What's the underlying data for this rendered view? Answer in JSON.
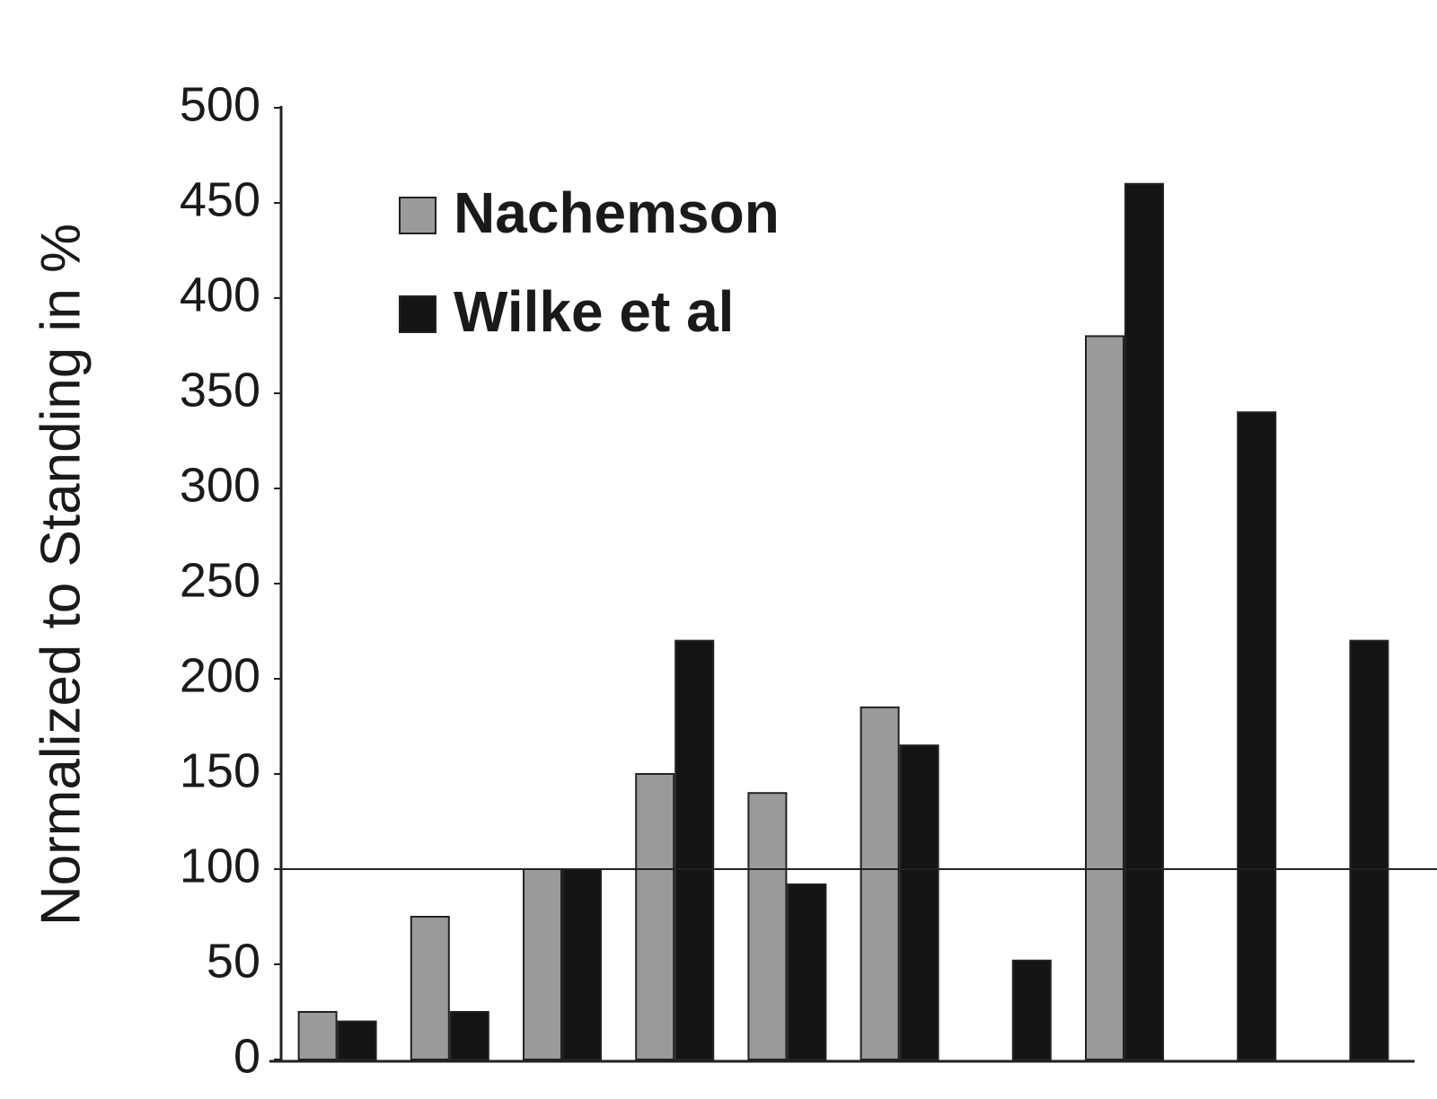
{
  "chart_data": {
    "type": "bar",
    "y_label": "Normalized to Standing in %",
    "categories": [
      null,
      null,
      null,
      null,
      null,
      null,
      null,
      null,
      null,
      null
    ],
    "series": [
      {
        "name": "Nachemson",
        "color": "#9a9a9a",
        "values": [
          25,
          75,
          100,
          150,
          140,
          185,
          null,
          380,
          null,
          null
        ]
      },
      {
        "name": "Wilke et al",
        "color": "#141414",
        "values": [
          20,
          25,
          100,
          220,
          92,
          165,
          52,
          460,
          340,
          220
        ]
      }
    ],
    "ylim": [
      0,
      500
    ],
    "yticks": [
      0,
      50,
      100,
      150,
      200,
      250,
      300,
      350,
      400,
      450,
      500
    ],
    "reference_line": 100,
    "grid": false,
    "legend": "upper left"
  }
}
